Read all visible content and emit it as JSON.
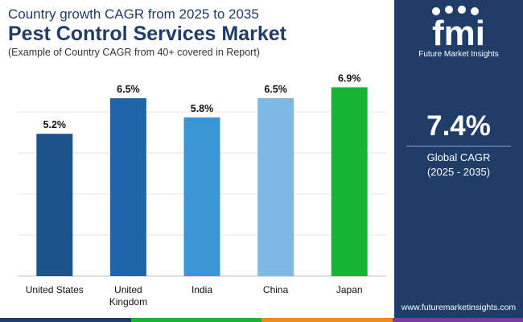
{
  "header": {
    "subtitle": "Country growth CAGR from 2025 to 2035",
    "title": "Pest Control Services Market",
    "note": "(Example of Country CAGR from 40+ covered in Report)"
  },
  "chart_data": {
    "type": "bar",
    "title": "Pest Control Services Market",
    "categories": [
      "United States",
      "United Kingdom",
      "India",
      "China",
      "Japan"
    ],
    "category_lines": [
      [
        "United States"
      ],
      [
        "United",
        "Kingdom"
      ],
      [
        "India"
      ],
      [
        "China"
      ],
      [
        "Japan"
      ]
    ],
    "values": [
      5.2,
      6.5,
      5.8,
      6.5,
      6.9
    ],
    "data_labels": [
      "5.2%",
      "6.5%",
      "5.8%",
      "6.5%",
      "6.9%"
    ],
    "colors": [
      "#1c5489",
      "#1f65a8",
      "#3a95d6",
      "#7db9e3",
      "#18b434"
    ],
    "ylim": [
      0,
      7.5
    ],
    "xlabel": "",
    "ylabel": "",
    "grid": true
  },
  "kpi": {
    "value": "7.4%",
    "label": "Global CAGR",
    "period": "(2025 - 2035)"
  },
  "brand": {
    "logo_letters": "fmi",
    "name": "Future Market Insights",
    "website": "www.futuremarketinsights.com"
  },
  "colors": {
    "panel": "#1f3d68",
    "strip": [
      "#1f3d68",
      "#18b434",
      "#f08a1c",
      "#7b3ea0"
    ]
  }
}
